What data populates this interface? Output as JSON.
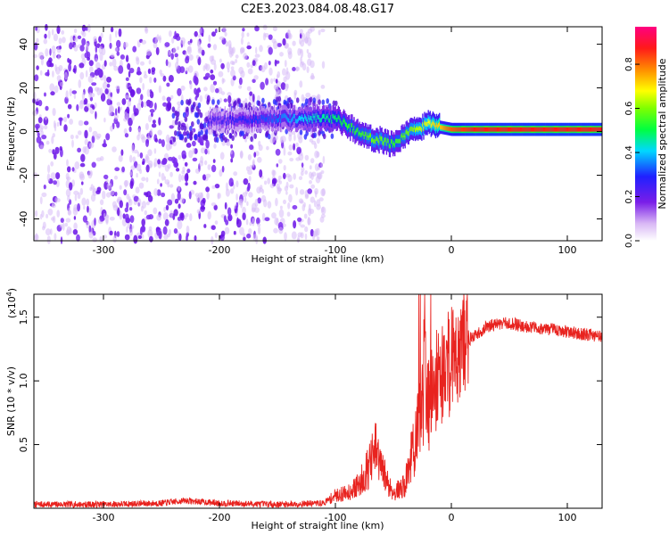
{
  "title": "C2E3.2023.084.08.48.G17",
  "colors": {
    "snr_line": "#e8231f",
    "background": "#ffffff",
    "axis": "#000000"
  },
  "chart_data": [
    {
      "type": "heatmap",
      "name": "spectrogram",
      "xlabel": "Height of straight line (km)",
      "ylabel": "Frequency (Hz)",
      "xlim": [
        -360,
        130
      ],
      "ylim": [
        -50,
        48
      ],
      "x_ticks": [
        -300,
        -200,
        -100,
        0,
        100
      ],
      "y_ticks": [
        40,
        20,
        0,
        -20,
        -40
      ],
      "x_tick_labels": [
        "-300",
        "-200",
        "-100",
        "0",
        "100"
      ],
      "y_tick_labels": [
        "40",
        "20",
        "0",
        "-20",
        "-40"
      ],
      "colormap": "rainbow (white-violet-blue-cyan-green-yellow-red-magenta)",
      "colorbar": {
        "label": "Normalized spectral amplitude",
        "range": [
          0.0,
          0.97
        ],
        "ticks": [
          0.0,
          0.2,
          0.4,
          0.6,
          0.8
        ],
        "tick_labels": [
          "0.0",
          "0.2",
          "0.4",
          "0.6",
          "0.8"
        ]
      },
      "ridge": {
        "description": "dominant frequency track",
        "x": [
          -200,
          -150,
          -120,
          -100,
          -90,
          -80,
          -70,
          -60,
          -50,
          -40,
          -30,
          -20,
          -10,
          0,
          20,
          60,
          100,
          130
        ],
        "y": [
          5,
          6,
          6,
          6,
          3,
          -1,
          -3,
          -4,
          -6,
          -1,
          1,
          4,
          2,
          1,
          1,
          1,
          1,
          1
        ],
        "amplitude": [
          0.25,
          0.35,
          0.45,
          0.5,
          0.55,
          0.55,
          0.6,
          0.6,
          0.55,
          0.6,
          0.65,
          0.7,
          0.75,
          0.85,
          0.9,
          0.9,
          0.9,
          0.9
        ]
      },
      "noise_region_x": [
        -360,
        -130
      ]
    },
    {
      "type": "line",
      "name": "snr",
      "xlabel": "Height of straight line (km)",
      "ylabel": "SNR (10 * v/v)",
      "y_multiplier_label": "(x10",
      "y_multiplier_exp": "4",
      "xlim": [
        -360,
        130
      ],
      "ylim": [
        0.0,
        1.68
      ],
      "x_ticks": [
        -300,
        -200,
        -100,
        0,
        100
      ],
      "y_ticks": [
        0.5,
        1.0,
        1.5
      ],
      "x_tick_labels": [
        "-300",
        "-200",
        "-100",
        "0",
        "100"
      ],
      "y_tick_labels": [
        "0.5",
        "1.0",
        "1.5"
      ],
      "series": [
        {
          "x": [
            -360,
            -300,
            -250,
            -230,
            -200,
            -150,
            -110,
            -100,
            -90,
            -80,
            -70,
            -65,
            -60,
            -50,
            -40,
            -35,
            -30,
            -25,
            -22,
            -20,
            -15,
            -10,
            -5,
            0,
            10,
            20,
            30,
            40,
            50,
            70,
            90,
            110,
            130
          ],
          "values": [
            0.03,
            0.03,
            0.04,
            0.06,
            0.04,
            0.03,
            0.04,
            0.1,
            0.12,
            0.18,
            0.35,
            0.45,
            0.3,
            0.12,
            0.18,
            0.4,
            0.55,
            0.9,
            1.3,
            0.8,
            1.05,
            1.05,
            1.1,
            1.2,
            1.3,
            1.35,
            1.42,
            1.45,
            1.45,
            1.42,
            1.4,
            1.37,
            1.35
          ]
        }
      ]
    }
  ]
}
